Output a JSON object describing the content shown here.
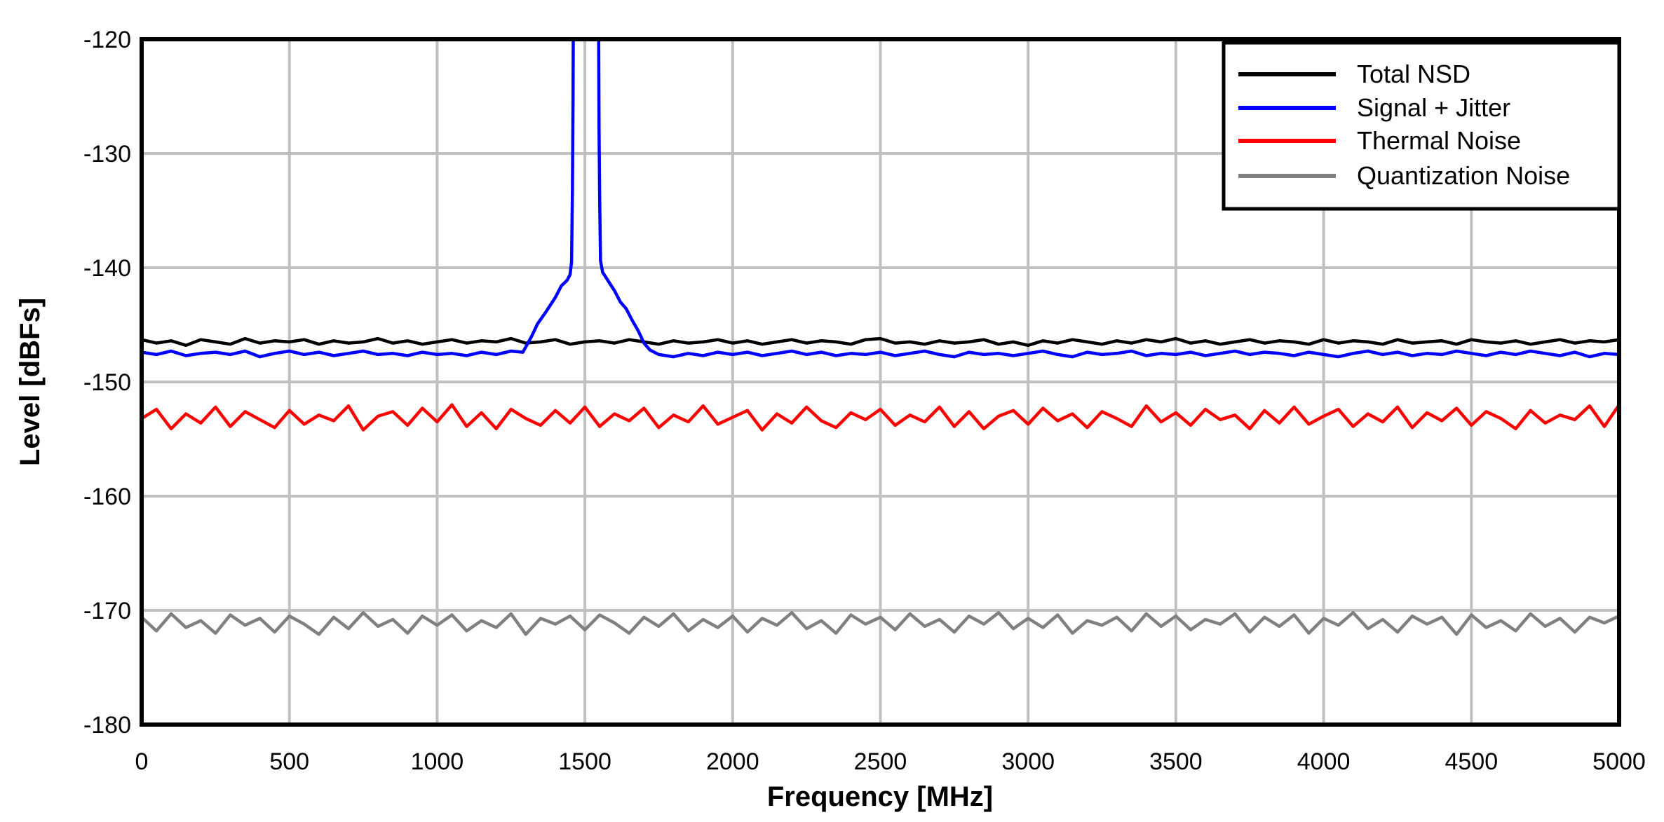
{
  "chart_data": {
    "type": "line",
    "title": "",
    "xlabel": "Frequency [MHz]",
    "ylabel": "Level [dBFs]",
    "xlim": [
      0,
      5000
    ],
    "ylim": [
      -180,
      -120
    ],
    "xticks": [
      "0",
      "500",
      "1000",
      "1500",
      "2000",
      "2500",
      "3000",
      "3500",
      "4000",
      "4500",
      "5000"
    ],
    "yticks": [
      "-120",
      "-130",
      "-140",
      "-150",
      "-160",
      "-170",
      "-180"
    ],
    "grid": true,
    "grid_color": "#c0c0c0",
    "legend_position": "top-right",
    "series": [
      {
        "name": "Total NSD",
        "color": "#000000",
        "x_start": 0,
        "x_step": 50,
        "y": [
          -146.3,
          -146.6,
          -146.4,
          -146.8,
          -146.3,
          -146.5,
          -146.7,
          -146.2,
          -146.6,
          -146.4,
          -146.5,
          -146.3,
          -146.7,
          -146.4,
          -146.6,
          -146.5,
          -146.2,
          -146.6,
          -146.4,
          -146.7,
          -146.5,
          -146.3,
          -146.6,
          -146.4,
          -146.5,
          -146.2,
          -146.6,
          -146.5,
          -146.3,
          -146.7,
          -146.5,
          -146.4,
          -146.6,
          -146.3,
          -146.5,
          -146.7,
          -146.4,
          -146.6,
          -146.5,
          -146.3,
          -146.6,
          -146.4,
          -146.7,
          -146.5,
          -146.3,
          -146.6,
          -146.4,
          -146.5,
          -146.7,
          -146.3,
          -146.2,
          -146.6,
          -146.5,
          -146.7,
          -146.4,
          -146.6,
          -146.5,
          -146.3,
          -146.7,
          -146.5,
          -146.8,
          -146.4,
          -146.6,
          -146.3,
          -146.5,
          -146.7,
          -146.4,
          -146.6,
          -146.3,
          -146.5,
          -146.2,
          -146.6,
          -146.4,
          -146.7,
          -146.5,
          -146.3,
          -146.6,
          -146.4,
          -146.5,
          -146.7,
          -146.3,
          -146.6,
          -146.4,
          -146.5,
          -146.7,
          -146.3,
          -146.6,
          -146.5,
          -146.4,
          -146.7,
          -146.3,
          -146.5,
          -146.6,
          -146.4,
          -146.7,
          -146.5,
          -146.3,
          -146.6,
          -146.4,
          -146.5,
          -146.3
        ]
      },
      {
        "name": "Signal + Jitter",
        "color": "#0000ff",
        "x": [
          0,
          50,
          100,
          150,
          200,
          250,
          300,
          350,
          400,
          450,
          500,
          550,
          600,
          650,
          700,
          750,
          800,
          850,
          900,
          950,
          1000,
          1050,
          1100,
          1150,
          1200,
          1250,
          1290,
          1320,
          1340,
          1370,
          1400,
          1420,
          1440,
          1450,
          1455,
          1458,
          1460,
          1462,
          1500,
          1545,
          1548,
          1550,
          1553,
          1560,
          1580,
          1600,
          1620,
          1640,
          1660,
          1680,
          1700,
          1720,
          1750,
          1800,
          1850,
          1900,
          1950,
          2000,
          2050,
          2100,
          2150,
          2200,
          2250,
          2300,
          2350,
          2400,
          2450,
          2500,
          2550,
          2600,
          2650,
          2700,
          2750,
          2800,
          2850,
          2900,
          2950,
          3000,
          3050,
          3100,
          3150,
          3200,
          3250,
          3300,
          3350,
          3400,
          3450,
          3500,
          3550,
          3600,
          3650,
          3700,
          3750,
          3800,
          3850,
          3900,
          3950,
          4000,
          4050,
          4100,
          4150,
          4200,
          4250,
          4300,
          4350,
          4400,
          4450,
          4500,
          4550,
          4600,
          4650,
          4700,
          4750,
          4800,
          4850,
          4900,
          4950,
          5000
        ],
        "y": [
          -147.4,
          -147.6,
          -147.3,
          -147.7,
          -147.5,
          -147.4,
          -147.6,
          -147.3,
          -147.8,
          -147.5,
          -147.3,
          -147.6,
          -147.4,
          -147.7,
          -147.5,
          -147.3,
          -147.6,
          -147.5,
          -147.7,
          -147.4,
          -147.6,
          -147.5,
          -147.7,
          -147.4,
          -147.6,
          -147.3,
          -147.4,
          -146.0,
          -144.9,
          -143.8,
          -142.6,
          -141.6,
          -141.1,
          -140.6,
          -139.5,
          -133,
          -125,
          -110,
          null,
          -110,
          -128,
          -134,
          -139.4,
          -140.4,
          -141.2,
          -142.0,
          -143.0,
          -143.6,
          -144.6,
          -145.5,
          -146.6,
          -147.2,
          -147.6,
          -147.8,
          -147.5,
          -147.7,
          -147.4,
          -147.6,
          -147.4,
          -147.7,
          -147.5,
          -147.3,
          -147.6,
          -147.4,
          -147.7,
          -147.5,
          -147.6,
          -147.4,
          -147.7,
          -147.5,
          -147.3,
          -147.6,
          -147.8,
          -147.4,
          -147.6,
          -147.5,
          -147.7,
          -147.5,
          -147.3,
          -147.6,
          -147.8,
          -147.4,
          -147.6,
          -147.5,
          -147.3,
          -147.7,
          -147.5,
          -147.6,
          -147.4,
          -147.7,
          -147.5,
          -147.3,
          -147.6,
          -147.4,
          -147.5,
          -147.7,
          -147.4,
          -147.6,
          -147.8,
          -147.5,
          -147.3,
          -147.6,
          -147.4,
          -147.7,
          -147.5,
          -147.6,
          -147.3,
          -147.5,
          -147.7,
          -147.4,
          -147.6,
          -147.3,
          -147.5,
          -147.7,
          -147.4,
          -147.8,
          -147.5,
          -147.6
        ]
      },
      {
        "name": "Thermal Noise",
        "color": "#ff0000",
        "x_start": 0,
        "x_step": 50,
        "y": [
          -153.2,
          -152.4,
          -154.1,
          -152.8,
          -153.6,
          -152.2,
          -153.9,
          -152.6,
          -153.3,
          -154.0,
          -152.5,
          -153.7,
          -152.9,
          -153.4,
          -152.1,
          -154.2,
          -153.0,
          -152.6,
          -153.8,
          -152.3,
          -153.5,
          -152.0,
          -153.9,
          -152.7,
          -154.1,
          -152.4,
          -153.2,
          -153.8,
          -152.5,
          -153.6,
          -152.2,
          -153.9,
          -152.8,
          -153.4,
          -152.3,
          -154.0,
          -152.9,
          -153.5,
          -152.1,
          -153.7,
          -153.1,
          -152.5,
          -154.2,
          -152.8,
          -153.6,
          -152.2,
          -153.4,
          -154.0,
          -152.7,
          -153.3,
          -152.4,
          -153.8,
          -152.9,
          -153.5,
          -152.2,
          -153.9,
          -152.6,
          -154.1,
          -153.0,
          -152.5,
          -153.7,
          -152.3,
          -153.4,
          -152.8,
          -154.0,
          -152.6,
          -153.2,
          -153.9,
          -152.1,
          -153.5,
          -152.7,
          -153.8,
          -152.4,
          -153.3,
          -152.9,
          -154.1,
          -152.5,
          -153.6,
          -152.2,
          -153.7,
          -153.0,
          -152.4,
          -153.9,
          -152.8,
          -153.5,
          -152.2,
          -154.0,
          -152.7,
          -153.4,
          -152.3,
          -153.8,
          -152.6,
          -153.2,
          -154.1,
          -152.5,
          -153.6,
          -152.9,
          -153.3,
          -152.1,
          -153.9,
          -152.0
        ]
      },
      {
        "name": "Quantization Noise",
        "color": "#808080",
        "x_start": 0,
        "x_step": 50,
        "y": [
          -170.6,
          -171.8,
          -170.3,
          -171.5,
          -170.9,
          -172.0,
          -170.4,
          -171.3,
          -170.7,
          -171.9,
          -170.5,
          -171.2,
          -172.1,
          -170.6,
          -171.6,
          -170.2,
          -171.4,
          -170.8,
          -172.0,
          -170.5,
          -171.3,
          -170.4,
          -171.8,
          -170.9,
          -171.5,
          -170.3,
          -172.1,
          -170.7,
          -171.2,
          -170.5,
          -171.7,
          -170.4,
          -171.1,
          -172.0,
          -170.6,
          -171.4,
          -170.3,
          -171.8,
          -170.8,
          -171.5,
          -170.5,
          -171.9,
          -170.7,
          -171.3,
          -170.2,
          -171.6,
          -170.9,
          -172.0,
          -170.4,
          -171.2,
          -170.6,
          -171.7,
          -170.3,
          -171.4,
          -170.8,
          -171.9,
          -170.5,
          -171.2,
          -170.2,
          -171.6,
          -170.7,
          -171.5,
          -170.4,
          -172.0,
          -170.9,
          -171.3,
          -170.6,
          -171.8,
          -170.3,
          -171.4,
          -170.5,
          -171.7,
          -170.8,
          -171.2,
          -170.3,
          -171.9,
          -170.6,
          -171.4,
          -170.4,
          -172.0,
          -170.7,
          -171.3,
          -170.2,
          -171.6,
          -170.8,
          -171.9,
          -170.5,
          -171.2,
          -170.6,
          -172.1,
          -170.4,
          -171.5,
          -170.9,
          -171.8,
          -170.3,
          -171.4,
          -170.7,
          -171.9,
          -170.6,
          -171.1,
          -170.5
        ]
      }
    ]
  }
}
